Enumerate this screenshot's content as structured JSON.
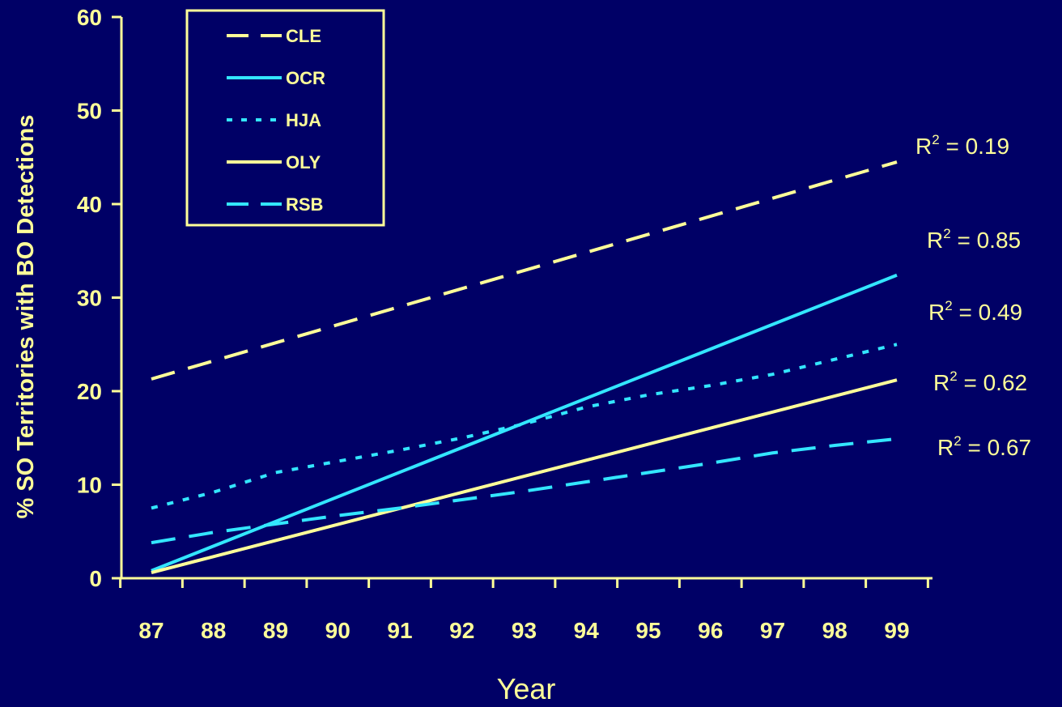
{
  "colors": {
    "background": "#000066",
    "axis": "#ffff99",
    "text": "#ffff99",
    "cyan": "#33e6ff"
  },
  "chart_data": {
    "type": "line",
    "title": "",
    "xlabel": "Year",
    "ylabel": "% SO Territories with BO Detections",
    "x_ticks": [
      "87",
      "88",
      "89",
      "90",
      "91",
      "92",
      "93",
      "94",
      "95",
      "96",
      "97",
      "98",
      "99"
    ],
    "y_ticks": [
      "0",
      "10",
      "20",
      "30",
      "40",
      "50",
      "60"
    ],
    "ylim": [
      0,
      60
    ],
    "grid": false,
    "legend_position": "top-left",
    "series": [
      {
        "name": "CLE",
        "color": "#ffff99",
        "dash": "long-dash",
        "r2_label": "R",
        "r2_sup": "2",
        "r2_value": " = 0.19",
        "points": [
          [
            87,
            21.3
          ],
          [
            99,
            44.5
          ]
        ]
      },
      {
        "name": "OCR",
        "color": "#33e6ff",
        "dash": "solid",
        "r2_label": "R",
        "r2_sup": "2",
        "r2_value": " = 0.85",
        "points": [
          [
            87,
            0.8
          ],
          [
            99,
            32.4
          ]
        ]
      },
      {
        "name": "HJA",
        "color": "#33e6ff",
        "dash": "dotted",
        "r2_label": "R",
        "r2_sup": "2",
        "r2_value": " = 0.49",
        "points": [
          [
            87,
            7.5
          ],
          [
            88,
            9.2
          ],
          [
            89,
            11.3
          ],
          [
            90,
            12.5
          ],
          [
            91,
            13.7
          ],
          [
            92,
            15.0
          ],
          [
            93,
            16.5
          ],
          [
            94,
            18.3
          ],
          [
            95,
            19.6
          ],
          [
            96,
            20.6
          ],
          [
            97,
            21.8
          ],
          [
            98,
            23.4
          ],
          [
            99,
            25.0
          ]
        ]
      },
      {
        "name": "OLY",
        "color": "#ffff99",
        "dash": "solid",
        "r2_label": "R",
        "r2_sup": "2",
        "r2_value": " = 0.62",
        "points": [
          [
            87,
            0.6
          ],
          [
            99,
            21.2
          ]
        ]
      },
      {
        "name": "RSB",
        "color": "#33e6ff",
        "dash": "long-dash",
        "r2_label": "R",
        "r2_sup": "2",
        "r2_value": " = 0.67",
        "points": [
          [
            87,
            3.8
          ],
          [
            88,
            4.9
          ],
          [
            89,
            5.8
          ],
          [
            90,
            6.7
          ],
          [
            91,
            7.5
          ],
          [
            92,
            8.4
          ],
          [
            93,
            9.3
          ],
          [
            94,
            10.3
          ],
          [
            95,
            11.3
          ],
          [
            96,
            12.3
          ],
          [
            97,
            13.4
          ],
          [
            98,
            14.2
          ],
          [
            99,
            14.9
          ]
        ]
      }
    ]
  }
}
